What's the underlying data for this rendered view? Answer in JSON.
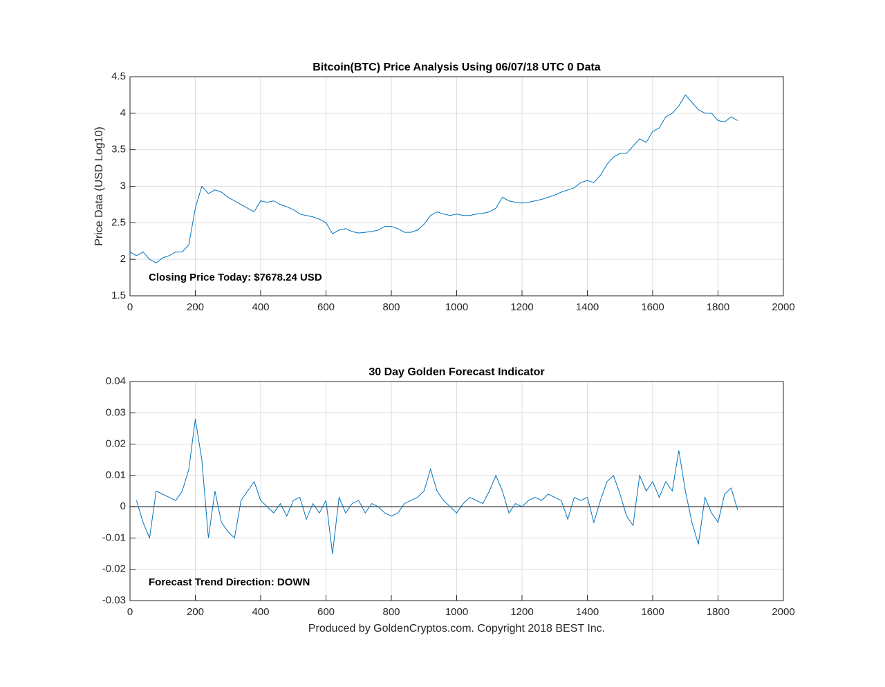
{
  "chart_data": [
    {
      "type": "line",
      "title": "Bitcoin(BTC) Price Analysis Using 06/07/18 UTC 0 Data",
      "ylabel": "Price Data (USD Log10)",
      "annotation": "Closing Price Today: $7678.24 USD",
      "color": "#0072bd",
      "grid": true,
      "xlim": [
        0,
        2000
      ],
      "xticks": [
        0,
        200,
        400,
        600,
        800,
        1000,
        1200,
        1400,
        1600,
        1800,
        2000
      ],
      "ylim": [
        1.5,
        4.5
      ],
      "yticks": [
        1.5,
        2,
        2.5,
        3,
        3.5,
        4,
        4.5
      ],
      "x": [
        0,
        20,
        40,
        60,
        80,
        100,
        120,
        140,
        160,
        180,
        200,
        220,
        240,
        260,
        280,
        300,
        320,
        340,
        360,
        380,
        400,
        420,
        440,
        460,
        480,
        500,
        520,
        540,
        560,
        580,
        600,
        620,
        640,
        660,
        680,
        700,
        720,
        740,
        760,
        780,
        800,
        820,
        840,
        860,
        880,
        900,
        920,
        940,
        960,
        980,
        1000,
        1020,
        1040,
        1060,
        1080,
        1100,
        1120,
        1140,
        1160,
        1180,
        1200,
        1220,
        1240,
        1260,
        1280,
        1300,
        1320,
        1340,
        1360,
        1380,
        1400,
        1420,
        1440,
        1460,
        1480,
        1500,
        1520,
        1540,
        1560,
        1580,
        1600,
        1620,
        1640,
        1660,
        1680,
        1700,
        1720,
        1740,
        1760,
        1780,
        1800,
        1820,
        1840,
        1860
      ],
      "values": [
        2.1,
        2.05,
        2.1,
        2.0,
        1.95,
        2.02,
        2.05,
        2.1,
        2.1,
        2.2,
        2.7,
        3.0,
        2.9,
        2.95,
        2.92,
        2.85,
        2.8,
        2.75,
        2.7,
        2.65,
        2.8,
        2.78,
        2.8,
        2.75,
        2.72,
        2.68,
        2.62,
        2.6,
        2.58,
        2.55,
        2.5,
        2.35,
        2.4,
        2.42,
        2.38,
        2.36,
        2.37,
        2.38,
        2.4,
        2.45,
        2.45,
        2.42,
        2.37,
        2.37,
        2.4,
        2.48,
        2.6,
        2.65,
        2.62,
        2.6,
        2.62,
        2.6,
        2.6,
        2.62,
        2.63,
        2.65,
        2.7,
        2.85,
        2.8,
        2.78,
        2.77,
        2.78,
        2.8,
        2.82,
        2.85,
        2.88,
        2.92,
        2.95,
        2.98,
        3.05,
        3.08,
        3.05,
        3.15,
        3.3,
        3.4,
        3.45,
        3.45,
        3.55,
        3.65,
        3.6,
        3.75,
        3.8,
        3.95,
        4.0,
        4.1,
        4.25,
        4.15,
        4.05,
        4.0,
        4.0,
        3.9,
        3.88,
        3.95,
        3.9
      ]
    },
    {
      "type": "line",
      "title": "30 Day Golden Forecast Indicator",
      "xlabel": "Produced by GoldenCryptos.com. Copyright 2018 BEST Inc.",
      "annotation": "Forecast Trend Direction: DOWN",
      "color": "#0072bd",
      "grid": true,
      "zero_line": true,
      "xlim": [
        0,
        2000
      ],
      "xticks": [
        0,
        200,
        400,
        600,
        800,
        1000,
        1200,
        1400,
        1600,
        1800,
        2000
      ],
      "ylim": [
        -0.03,
        0.04
      ],
      "yticks": [
        -0.03,
        -0.02,
        -0.01,
        0,
        0.01,
        0.02,
        0.03,
        0.04
      ],
      "x": [
        20,
        40,
        60,
        80,
        100,
        120,
        140,
        160,
        180,
        200,
        220,
        240,
        260,
        280,
        300,
        320,
        340,
        360,
        380,
        400,
        420,
        440,
        460,
        480,
        500,
        520,
        540,
        560,
        580,
        600,
        620,
        640,
        660,
        680,
        700,
        720,
        740,
        760,
        780,
        800,
        820,
        840,
        860,
        880,
        900,
        920,
        940,
        960,
        980,
        1000,
        1020,
        1040,
        1060,
        1080,
        1100,
        1120,
        1140,
        1160,
        1180,
        1200,
        1220,
        1240,
        1260,
        1280,
        1300,
        1320,
        1340,
        1360,
        1380,
        1400,
        1420,
        1440,
        1460,
        1480,
        1500,
        1520,
        1540,
        1560,
        1580,
        1600,
        1620,
        1640,
        1660,
        1680,
        1700,
        1720,
        1740,
        1760,
        1780,
        1800,
        1820,
        1840,
        1860
      ],
      "values": [
        0.002,
        -0.005,
        -0.01,
        0.005,
        0.004,
        0.003,
        0.002,
        0.005,
        0.012,
        0.028,
        0.015,
        -0.01,
        0.005,
        -0.005,
        -0.008,
        -0.01,
        0.002,
        0.005,
        0.008,
        0.002,
        0,
        -0.002,
        0.001,
        -0.003,
        0.002,
        0.003,
        -0.004,
        0.001,
        -0.002,
        0.002,
        -0.015,
        0.003,
        -0.002,
        0.001,
        0.002,
        -0.002,
        0.001,
        0,
        -0.002,
        -0.003,
        -0.002,
        0.001,
        0.002,
        0.003,
        0.005,
        0.012,
        0.005,
        0.002,
        0,
        -0.002,
        0.001,
        0.003,
        0.002,
        0.001,
        0.005,
        0.01,
        0.005,
        -0.002,
        0.001,
        0,
        0.002,
        0.003,
        0.002,
        0.004,
        0.003,
        0.002,
        -0.004,
        0.003,
        0.002,
        0.003,
        -0.005,
        0.002,
        0.008,
        0.01,
        0.004,
        -0.003,
        -0.006,
        0.01,
        0.005,
        0.008,
        0.003,
        0.008,
        0.005,
        0.018,
        0.005,
        -0.005,
        -0.012,
        0.003,
        -0.002,
        -0.005,
        0.004,
        0.006,
        -0.001
      ]
    }
  ]
}
